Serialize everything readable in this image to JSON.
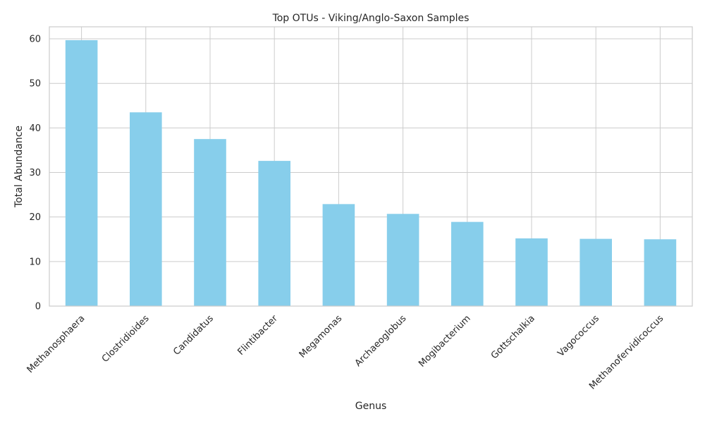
{
  "chart_data": {
    "type": "bar",
    "title": "Top OTUs - Viking/Anglo-Saxon Samples",
    "xlabel": "Genus",
    "ylabel": "Total Abundance",
    "categories": [
      "Methanosphaera",
      "Clostridioides",
      "Candidatus",
      "Flintibacter",
      "Megamonas",
      "Archaeoglobus",
      "Mogibacterium",
      "Gottschalkia",
      "Vagococcus",
      "Methanofervidicoccus"
    ],
    "values": [
      59.7,
      43.5,
      37.5,
      32.6,
      22.9,
      20.7,
      18.9,
      15.2,
      15.1,
      15.0
    ],
    "ylim": [
      0,
      62.7
    ],
    "yticks": [
      0,
      10,
      20,
      30,
      40,
      50,
      60
    ],
    "grid": true,
    "bar_color": "#87CEEB"
  }
}
